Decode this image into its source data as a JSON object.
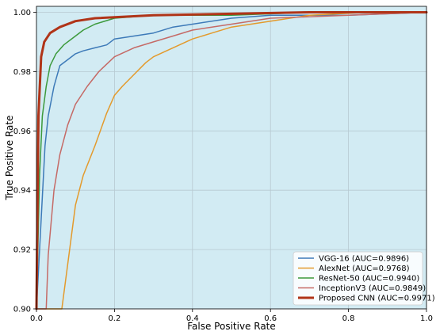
{
  "chart_data": {
    "type": "line",
    "title": "",
    "xlabel": "False Positive Rate",
    "ylabel": "True Positive Rate",
    "xlim": [
      0.0,
      1.0
    ],
    "ylim": [
      0.9,
      1.002
    ],
    "xticks": [
      "0.0",
      "0.2",
      "0.4",
      "0.6",
      "0.8",
      "1.0"
    ],
    "yticks": [
      "0.90",
      "0.92",
      "0.94",
      "0.96",
      "0.98",
      "1.00"
    ],
    "grid": true,
    "legend_position": "lower-right",
    "background_color": "#d2ebf3",
    "series": [
      {
        "name": "VGG-16 (AUC=0.9896)",
        "color": "#3d7ab8",
        "line_width": 1.5,
        "points": [
          [
            0.0,
            0.9
          ],
          [
            0.012,
            0.93
          ],
          [
            0.022,
            0.955
          ],
          [
            0.03,
            0.965
          ],
          [
            0.045,
            0.975
          ],
          [
            0.06,
            0.982
          ],
          [
            0.08,
            0.984
          ],
          [
            0.1,
            0.986
          ],
          [
            0.12,
            0.987
          ],
          [
            0.15,
            0.988
          ],
          [
            0.18,
            0.989
          ],
          [
            0.2,
            0.991
          ],
          [
            0.25,
            0.992
          ],
          [
            0.3,
            0.993
          ],
          [
            0.35,
            0.995
          ],
          [
            0.4,
            0.996
          ],
          [
            0.5,
            0.998
          ],
          [
            0.6,
            0.999
          ],
          [
            0.8,
            0.999
          ],
          [
            1.0,
            1.0
          ]
        ]
      },
      {
        "name": "AlexNet (AUC=0.9768)",
        "color": "#e39a2c",
        "line_width": 1.5,
        "points": [
          [
            0.0,
            0.9
          ],
          [
            0.065,
            0.9
          ],
          [
            0.08,
            0.915
          ],
          [
            0.1,
            0.935
          ],
          [
            0.12,
            0.945
          ],
          [
            0.15,
            0.955
          ],
          [
            0.18,
            0.966
          ],
          [
            0.2,
            0.972
          ],
          [
            0.22,
            0.975
          ],
          [
            0.25,
            0.979
          ],
          [
            0.28,
            0.983
          ],
          [
            0.3,
            0.985
          ],
          [
            0.35,
            0.988
          ],
          [
            0.4,
            0.991
          ],
          [
            0.45,
            0.993
          ],
          [
            0.5,
            0.995
          ],
          [
            0.6,
            0.997
          ],
          [
            0.7,
            0.999
          ],
          [
            0.85,
            1.0
          ],
          [
            1.0,
            1.0
          ]
        ]
      },
      {
        "name": "ResNet-50 (AUC=0.9940)",
        "color": "#3c9a3c",
        "line_width": 1.5,
        "points": [
          [
            0.0,
            0.9
          ],
          [
            0.008,
            0.945
          ],
          [
            0.015,
            0.965
          ],
          [
            0.025,
            0.975
          ],
          [
            0.035,
            0.982
          ],
          [
            0.05,
            0.986
          ],
          [
            0.07,
            0.989
          ],
          [
            0.1,
            0.992
          ],
          [
            0.12,
            0.994
          ],
          [
            0.15,
            0.996
          ],
          [
            0.2,
            0.998
          ],
          [
            0.3,
            0.999
          ],
          [
            0.5,
            0.999
          ],
          [
            0.7,
            1.0
          ],
          [
            1.0,
            1.0
          ]
        ]
      },
      {
        "name": "InceptionV3 (AUC=0.9849)",
        "color": "#c56a66",
        "line_width": 1.5,
        "points": [
          [
            0.0,
            0.9
          ],
          [
            0.025,
            0.9
          ],
          [
            0.03,
            0.918
          ],
          [
            0.045,
            0.94
          ],
          [
            0.06,
            0.952
          ],
          [
            0.08,
            0.962
          ],
          [
            0.1,
            0.969
          ],
          [
            0.13,
            0.975
          ],
          [
            0.16,
            0.98
          ],
          [
            0.2,
            0.985
          ],
          [
            0.25,
            0.988
          ],
          [
            0.3,
            0.99
          ],
          [
            0.35,
            0.992
          ],
          [
            0.4,
            0.994
          ],
          [
            0.5,
            0.996
          ],
          [
            0.6,
            0.998
          ],
          [
            0.8,
            0.999
          ],
          [
            1.0,
            1.0
          ]
        ]
      },
      {
        "name": "Proposed CNN (AUC=0.9971)",
        "color": "#b03418",
        "line_width": 3,
        "points": [
          [
            0.0,
            0.9
          ],
          [
            0.005,
            0.965
          ],
          [
            0.012,
            0.985
          ],
          [
            0.02,
            0.99
          ],
          [
            0.035,
            0.993
          ],
          [
            0.06,
            0.995
          ],
          [
            0.1,
            0.997
          ],
          [
            0.15,
            0.998
          ],
          [
            0.3,
            0.999
          ],
          [
            0.5,
            0.9995
          ],
          [
            0.7,
            1.0
          ],
          [
            1.0,
            1.0
          ]
        ]
      }
    ]
  }
}
